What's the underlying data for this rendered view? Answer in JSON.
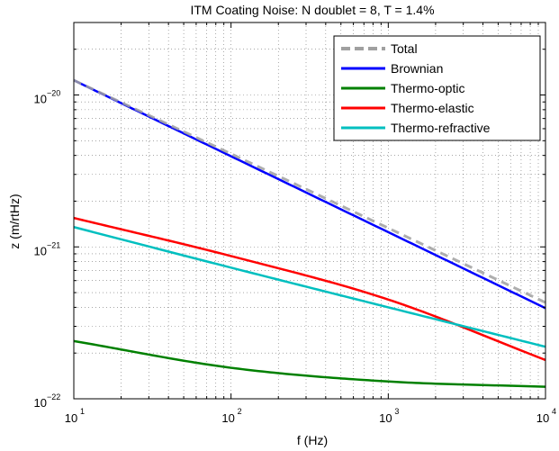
{
  "chart_data": {
    "type": "line",
    "title": "ITM Coating Noise: N doublet = 8, T = 1.4%",
    "xlabel": "f (Hz)",
    "ylabel": "z (m/rtHz)",
    "xscale": "log",
    "yscale": "log",
    "xlim": [
      10,
      10000
    ],
    "ylim": [
      1e-22,
      3e-20
    ],
    "grid": true,
    "legend_position": "top-right",
    "x_ticks": [
      {
        "value": 10,
        "base": "10",
        "exp": "1"
      },
      {
        "value": 100,
        "base": "10",
        "exp": "2"
      },
      {
        "value": 1000,
        "base": "10",
        "exp": "3"
      },
      {
        "value": 10000,
        "base": "10",
        "exp": "4"
      }
    ],
    "y_ticks": [
      {
        "value": 1e-22,
        "base": "10",
        "exp": "−22"
      },
      {
        "value": 1e-21,
        "base": "10",
        "exp": "−21"
      },
      {
        "value": 1e-20,
        "base": "10",
        "exp": "−20"
      }
    ],
    "x": [
      10,
      100,
      1000,
      10000
    ],
    "series": [
      {
        "name": "Total",
        "color": "#a0a0a0",
        "dashed": true,
        "values": [
          1.25e-20,
          4.1e-21,
          1.33e-21,
          4.3e-22
        ]
      },
      {
        "name": "Brownian",
        "color": "#0000ff",
        "dashed": false,
        "values": [
          1.25e-20,
          3.95e-21,
          1.25e-21,
          3.95e-22
        ]
      },
      {
        "name": "Thermo-optic",
        "color": "#008000",
        "dashed": false,
        "values": [
          2.4e-22,
          1.6e-22,
          1.3e-22,
          1.2e-22
        ]
      },
      {
        "name": "Thermo-elastic",
        "color": "#ff0000",
        "dashed": false,
        "values": [
          1.55e-21,
          8.7e-22,
          4.5e-22,
          1.8e-22
        ]
      },
      {
        "name": "Thermo-refractive",
        "color": "#00bfbf",
        "dashed": false,
        "values": [
          1.35e-21,
          7.3e-22,
          4e-22,
          2.2e-22
        ]
      }
    ]
  }
}
